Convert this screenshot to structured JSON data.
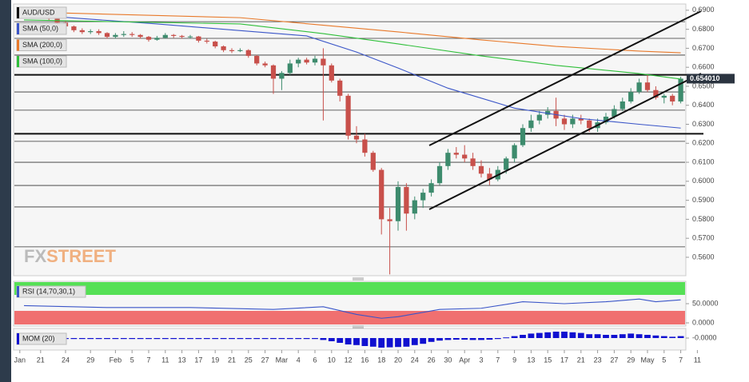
{
  "chart_data": {
    "type": "candlestick",
    "title": "AUD/USD",
    "up_color": "#3d8b6d",
    "down_color": "#c8504b",
    "ylim": [
      0.5503,
      0.6933
    ],
    "yticks": [
      {
        "value": 0.69,
        "label": "0.6900"
      },
      {
        "value": 0.68,
        "label": "0.6800"
      },
      {
        "value": 0.67,
        "label": "0.6700"
      },
      {
        "value": 0.66,
        "label": "0.6600"
      },
      {
        "value": 0.65,
        "label": "0.6500"
      },
      {
        "value": 0.64,
        "label": "0.6400"
      },
      {
        "value": 0.63,
        "label": "0.6300"
      },
      {
        "value": 0.62,
        "label": "0.6200"
      },
      {
        "value": 0.61,
        "label": "0.6100"
      },
      {
        "value": 0.6,
        "label": "0.6000"
      },
      {
        "value": 0.59,
        "label": "0.5900"
      },
      {
        "value": 0.58,
        "label": "0.5800"
      },
      {
        "value": 0.57,
        "label": "0.5700"
      },
      {
        "value": 0.56,
        "label": "0.5600"
      }
    ],
    "xlim": [
      -1,
      79.5
    ],
    "xticks": [
      {
        "value": -0.5,
        "label": "Jan"
      },
      {
        "value": 2,
        "label": "21"
      },
      {
        "value": 5,
        "label": "24"
      },
      {
        "value": 8,
        "label": "29"
      },
      {
        "value": 11,
        "label": "Feb"
      },
      {
        "value": 13,
        "label": "5"
      },
      {
        "value": 15,
        "label": "7"
      },
      {
        "value": 17,
        "label": "11"
      },
      {
        "value": 19,
        "label": "13"
      },
      {
        "value": 21,
        "label": "17"
      },
      {
        "value": 23,
        "label": "19"
      },
      {
        "value": 25,
        "label": "21"
      },
      {
        "value": 27,
        "label": "25"
      },
      {
        "value": 29,
        "label": "27"
      },
      {
        "value": 31,
        "label": "Mar"
      },
      {
        "value": 33,
        "label": "4"
      },
      {
        "value": 35,
        "label": "6"
      },
      {
        "value": 37,
        "label": "10"
      },
      {
        "value": 39,
        "label": "12"
      },
      {
        "value": 41,
        "label": "16"
      },
      {
        "value": 43,
        "label": "18"
      },
      {
        "value": 45,
        "label": "20"
      },
      {
        "value": 47,
        "label": "24"
      },
      {
        "value": 49,
        "label": "26"
      },
      {
        "value": 51,
        "label": "30"
      },
      {
        "value": 53,
        "label": "Apr"
      },
      {
        "value": 55,
        "label": "3"
      },
      {
        "value": 57,
        "label": "7"
      },
      {
        "value": 59,
        "label": "9"
      },
      {
        "value": 61,
        "label": "13"
      },
      {
        "value": 63,
        "label": "15"
      },
      {
        "value": 65,
        "label": "17"
      },
      {
        "value": 67,
        "label": "21"
      },
      {
        "value": 69,
        "label": "23"
      },
      {
        "value": 71,
        "label": "27"
      },
      {
        "value": 73,
        "label": "29"
      },
      {
        "value": 75,
        "label": "May"
      },
      {
        "value": 77,
        "label": "5"
      },
      {
        "value": 79,
        "label": "7"
      },
      {
        "value": 81,
        "label": "11"
      }
    ],
    "current_price": {
      "value": 0.65401,
      "label": "0.654010"
    },
    "key_levels": [
      0.656,
      0.625
    ],
    "levels": [
      0.684,
      0.6752,
      0.6664,
      0.647,
      0.6374,
      0.621,
      0.61,
      0.5978,
      0.5865,
      0.5655
    ],
    "candles": [
      [
        0.689,
        0.69,
        0.687,
        0.688
      ],
      [
        0.688,
        0.689,
        0.6865,
        0.6878
      ],
      [
        0.6878,
        0.6885,
        0.686,
        0.687
      ],
      [
        0.687,
        0.6875,
        0.6845,
        0.6855
      ],
      [
        0.6855,
        0.686,
        0.6825,
        0.6835
      ],
      [
        0.6835,
        0.6845,
        0.6805,
        0.6815
      ],
      [
        0.6815,
        0.682,
        0.6785,
        0.6795
      ],
      [
        0.6795,
        0.6805,
        0.6775,
        0.6785
      ],
      [
        0.6785,
        0.68,
        0.6775,
        0.679
      ],
      [
        0.679,
        0.68,
        0.677,
        0.678
      ],
      [
        0.678,
        0.6785,
        0.675,
        0.676
      ],
      [
        0.676,
        0.678,
        0.675,
        0.677
      ],
      [
        0.677,
        0.679,
        0.676,
        0.6775
      ],
      [
        0.6775,
        0.6785,
        0.676,
        0.677
      ],
      [
        0.677,
        0.6775,
        0.675,
        0.676
      ],
      [
        0.676,
        0.6765,
        0.6735,
        0.6745
      ],
      [
        0.6745,
        0.6765,
        0.674,
        0.6755
      ],
      [
        0.6755,
        0.678,
        0.675,
        0.677
      ],
      [
        0.677,
        0.6775,
        0.6755,
        0.6765
      ],
      [
        0.6765,
        0.677,
        0.675,
        0.676
      ],
      [
        0.676,
        0.677,
        0.675,
        0.6762
      ],
      [
        0.6762,
        0.6765,
        0.673,
        0.674
      ],
      [
        0.674,
        0.675,
        0.6725,
        0.6735
      ],
      [
        0.6735,
        0.674,
        0.67,
        0.671
      ],
      [
        0.671,
        0.6715,
        0.668,
        0.669
      ],
      [
        0.669,
        0.67,
        0.6675,
        0.6685
      ],
      [
        0.6685,
        0.67,
        0.668,
        0.669
      ],
      [
        0.669,
        0.6695,
        0.665,
        0.666
      ],
      [
        0.666,
        0.6665,
        0.661,
        0.662
      ],
      [
        0.662,
        0.663,
        0.66,
        0.661
      ],
      [
        0.661,
        0.6615,
        0.646,
        0.654
      ],
      [
        0.654,
        0.658,
        0.648,
        0.657
      ],
      [
        0.657,
        0.664,
        0.656,
        0.662
      ],
      [
        0.662,
        0.665,
        0.66,
        0.664
      ],
      [
        0.664,
        0.665,
        0.6615,
        0.6625
      ],
      [
        0.6625,
        0.666,
        0.661,
        0.6645
      ],
      [
        0.6645,
        0.67,
        0.632,
        0.661
      ],
      [
        0.661,
        0.662,
        0.652,
        0.653
      ],
      [
        0.653,
        0.654,
        0.642,
        0.645
      ],
      [
        0.645,
        0.646,
        0.622,
        0.624
      ],
      [
        0.624,
        0.629,
        0.62,
        0.622
      ],
      [
        0.622,
        0.625,
        0.613,
        0.615
      ],
      [
        0.615,
        0.616,
        0.605,
        0.606
      ],
      [
        0.606,
        0.607,
        0.572,
        0.58
      ],
      [
        0.58,
        0.586,
        0.551,
        0.579
      ],
      [
        0.579,
        0.6,
        0.574,
        0.597
      ],
      [
        0.597,
        0.599,
        0.574,
        0.583
      ],
      [
        0.583,
        0.592,
        0.58,
        0.59
      ],
      [
        0.59,
        0.596,
        0.586,
        0.594
      ],
      [
        0.594,
        0.601,
        0.592,
        0.599
      ],
      [
        0.599,
        0.61,
        0.598,
        0.608
      ],
      [
        0.608,
        0.617,
        0.606,
        0.615
      ],
      [
        0.615,
        0.618,
        0.612,
        0.614
      ],
      [
        0.614,
        0.619,
        0.61,
        0.612
      ],
      [
        0.612,
        0.615,
        0.606,
        0.608
      ],
      [
        0.608,
        0.611,
        0.602,
        0.604
      ],
      [
        0.604,
        0.607,
        0.598,
        0.601
      ],
      [
        0.601,
        0.608,
        0.6,
        0.606
      ],
      [
        0.606,
        0.613,
        0.604,
        0.612
      ],
      [
        0.612,
        0.62,
        0.61,
        0.619
      ],
      [
        0.619,
        0.63,
        0.618,
        0.628
      ],
      [
        0.628,
        0.635,
        0.626,
        0.632
      ],
      [
        0.632,
        0.637,
        0.63,
        0.635
      ],
      [
        0.635,
        0.639,
        0.633,
        0.637
      ],
      [
        0.637,
        0.644,
        0.629,
        0.633
      ],
      [
        0.633,
        0.635,
        0.627,
        0.63
      ],
      [
        0.63,
        0.635,
        0.628,
        0.633
      ],
      [
        0.633,
        0.635,
        0.63,
        0.632
      ],
      [
        0.632,
        0.633,
        0.626,
        0.628
      ],
      [
        0.628,
        0.633,
        0.626,
        0.631
      ],
      [
        0.631,
        0.636,
        0.63,
        0.634
      ],
      [
        0.634,
        0.64,
        0.633,
        0.638
      ],
      [
        0.638,
        0.644,
        0.637,
        0.642
      ],
      [
        0.642,
        0.649,
        0.641,
        0.647
      ],
      [
        0.647,
        0.654,
        0.646,
        0.652
      ],
      [
        0.652,
        0.656,
        0.647,
        0.648
      ],
      [
        0.648,
        0.65,
        0.643,
        0.644
      ],
      [
        0.644,
        0.646,
        0.641,
        0.645
      ],
      [
        0.645,
        0.646,
        0.64,
        0.642
      ],
      [
        0.642,
        0.655,
        0.641,
        0.654
      ]
    ],
    "series": [
      {
        "name": "SMA (50,0)",
        "color": "#3a55c8",
        "x": [
          0,
          16,
          34,
          40,
          45,
          51,
          59,
          67,
          74,
          79
        ],
        "values": [
          0.6878,
          0.6828,
          0.6765,
          0.668,
          0.6596,
          0.649,
          0.6385,
          0.633,
          0.63,
          0.628
        ]
      },
      {
        "name": "SMA (200,0)",
        "color": "#e8792a",
        "x": [
          0,
          26,
          45,
          55,
          64,
          74,
          79
        ],
        "values": [
          0.6891,
          0.6861,
          0.6786,
          0.6744,
          0.671,
          0.6685,
          0.6676
        ]
      },
      {
        "name": "SMA (100,0)",
        "color": "#2fbf3a",
        "x": [
          0,
          26,
          36,
          45,
          55,
          64,
          74,
          79
        ],
        "values": [
          0.6849,
          0.6828,
          0.6777,
          0.6723,
          0.666,
          0.661,
          0.6567,
          0.6538
        ]
      }
    ],
    "rsi": {
      "name": "RSI (14,70,30,1)",
      "color": "#3a55c8",
      "ylim": [
        0,
        100
      ],
      "yticks": [
        {
          "value": 50,
          "label": "50.0000"
        },
        {
          "value": 0,
          "label": "0.0000"
        }
      ],
      "x": [
        0,
        10,
        20,
        30,
        36,
        40,
        43,
        45,
        50,
        55,
        60,
        65,
        70,
        74,
        76,
        79
      ],
      "values": [
        45,
        40,
        40,
        35,
        42,
        22,
        12,
        16,
        35,
        38,
        55,
        50,
        55,
        62,
        55,
        60
      ]
    },
    "mom": {
      "name": "MOM (20)",
      "color": "#1010d0",
      "ylim": [
        -0.03,
        0.03
      ],
      "yticks": [
        {
          "value": 0,
          "label": "-0.0000"
        }
      ],
      "values": [
        -0.003,
        -0.003,
        -0.003,
        -0.003,
        -0.003,
        -0.003,
        -0.003,
        -0.003,
        -0.003,
        -0.003,
        -0.003,
        -0.003,
        -0.003,
        -0.003,
        -0.003,
        -0.003,
        -0.003,
        -0.003,
        -0.003,
        -0.003,
        -0.003,
        -0.003,
        -0.003,
        -0.003,
        -0.003,
        -0.003,
        -0.003,
        -0.003,
        -0.003,
        -0.003,
        -0.003,
        -0.003,
        -0.003,
        -0.003,
        -0.003,
        -0.003,
        -0.006,
        -0.01,
        -0.015,
        -0.02,
        -0.022,
        -0.025,
        -0.027,
        -0.03,
        -0.029,
        -0.028,
        -0.027,
        -0.022,
        -0.018,
        -0.012,
        -0.008,
        -0.006,
        -0.005,
        -0.005,
        -0.006,
        -0.006,
        -0.005,
        -0.003,
        0.002,
        0.006,
        0.01,
        0.014,
        0.016,
        0.018,
        0.02,
        0.02,
        0.018,
        0.016,
        0.012,
        0.012,
        0.01,
        0.01,
        0.012,
        0.014,
        0.012,
        0.01,
        0.008,
        0.006,
        0.004,
        0.006
      ]
    },
    "watermark": {
      "part1": "FX",
      "part2": "STREET"
    }
  }
}
